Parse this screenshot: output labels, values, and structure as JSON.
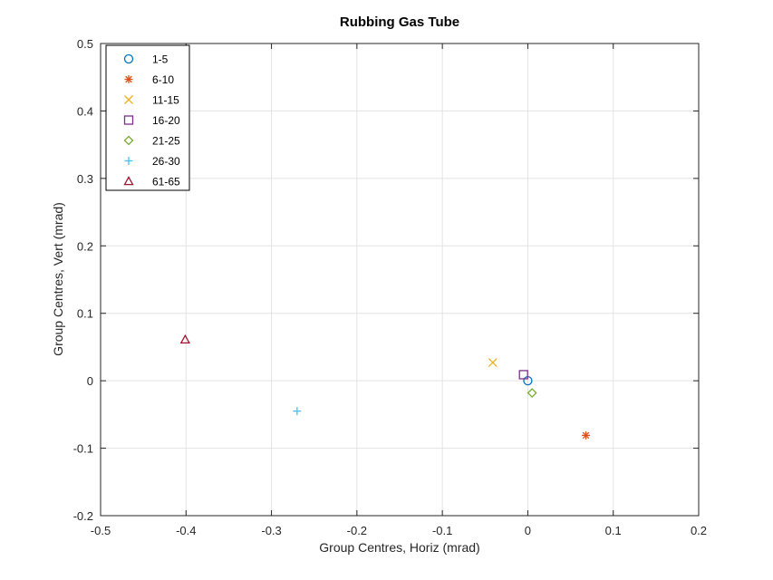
{
  "chart_data": {
    "type": "scatter",
    "title": "Rubbing Gas Tube",
    "xlabel": "Group Centres, Horiz (mrad)",
    "ylabel": "Group Centres, Vert (mrad)",
    "xlim": [
      -0.5,
      0.2
    ],
    "ylim": [
      -0.2,
      0.5
    ],
    "xticks": [
      -0.5,
      -0.4,
      -0.3,
      -0.2,
      -0.1,
      0,
      0.1,
      0.2
    ],
    "xtick_labels": [
      "-0.5",
      "-0.4",
      "-0.3",
      "-0.2",
      "-0.1",
      "0",
      "0.1",
      "0.2"
    ],
    "yticks": [
      -0.2,
      -0.1,
      0,
      0.1,
      0.2,
      0.3,
      0.4,
      0.5
    ],
    "ytick_labels": [
      "-0.2",
      "-0.1",
      "0",
      "0.1",
      "0.2",
      "0.3",
      "0.4",
      "0.5"
    ],
    "grid": true,
    "legend_position": "top-left",
    "series": [
      {
        "name": "1-5",
        "marker": "circle",
        "color": "#0072BD",
        "points": [
          [
            0.0,
            0.0
          ]
        ]
      },
      {
        "name": "6-10",
        "marker": "asterisk",
        "color": "#D95319",
        "points": [
          [
            0.068,
            -0.081
          ]
        ]
      },
      {
        "name": "11-15",
        "marker": "x",
        "color": "#EDB120",
        "points": [
          [
            -0.041,
            0.027
          ]
        ]
      },
      {
        "name": "16-20",
        "marker": "square",
        "color": "#7E2F8E",
        "points": [
          [
            -0.005,
            0.009
          ]
        ]
      },
      {
        "name": "21-25",
        "marker": "diamond",
        "color": "#77AC30",
        "points": [
          [
            0.005,
            -0.018
          ]
        ]
      },
      {
        "name": "26-30",
        "marker": "plus",
        "color": "#4DBEEE",
        "points": [
          [
            -0.27,
            -0.045
          ]
        ]
      },
      {
        "name": "61-65",
        "marker": "triangle",
        "color": "#A2142F",
        "points": [
          [
            -0.401,
            0.061
          ]
        ]
      }
    ]
  }
}
